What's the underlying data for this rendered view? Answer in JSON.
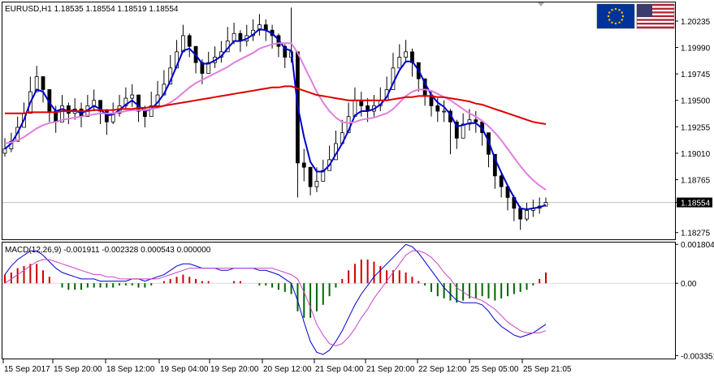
{
  "chart_data": [
    {
      "type": "candlestick",
      "title": "EURUSD,H1 1.18535 1.18554 1.18519 1.18554",
      "symbol": "EURUSD",
      "timeframe": "H1",
      "ohlc_last": {
        "open": 1.18535,
        "high": 1.18554,
        "low": 1.18519,
        "close": 1.18554
      },
      "current_price_label": "1.18554",
      "ylim": [
        1.1822,
        1.204
      ],
      "y_ticks": [
        "1.20235",
        "1.19990",
        "1.19745",
        "1.19500",
        "1.19255",
        "1.19010",
        "1.18765",
        "1.18554",
        "1.18275"
      ],
      "x_ticks": [
        "15 Sep 2017",
        "15 Sep 20:00",
        "18 Sep 12:00",
        "19 Sep 04:00",
        "19 Sep 20:00",
        "20 Sep 12:00",
        "21 Sep 04:00",
        "21 Sep 20:00",
        "22 Sep 12:00",
        "25 Sep 05:00",
        "25 Sep 21:05"
      ],
      "series": [
        {
          "color": "#000000",
          "close": [
            1.1905,
            1.1912,
            1.1925,
            1.1938,
            1.1958,
            1.1972,
            1.196,
            1.194,
            1.193,
            1.1945,
            1.1938,
            1.1942,
            1.1935,
            1.1945,
            1.195,
            1.194,
            1.193,
            1.1938,
            1.1945,
            1.1952,
            1.1955,
            1.194,
            1.1935,
            1.1945,
            1.1955,
            1.1965,
            1.198,
            1.1995,
            1.201,
            1.2,
            1.1985,
            1.1975,
            1.1985,
            1.199,
            1.1995,
            1.2005,
            1.2012,
            1.2005,
            1.201,
            1.2015,
            1.202,
            1.2015,
            1.201,
            1.2,
            1.199,
            1.1995,
            1.1892,
            1.1888,
            1.187,
            1.1875,
            1.1885,
            1.1895,
            1.191,
            1.192,
            1.1935,
            1.195,
            1.1945,
            1.194,
            1.1945,
            1.195,
            1.196,
            1.198,
            1.199,
            1.1995,
            1.1985,
            1.197,
            1.1955,
            1.1945,
            1.194,
            1.194,
            1.193,
            1.1915,
            1.1928,
            1.1932,
            1.193,
            1.192,
            1.19,
            1.188,
            1.187,
            1.186,
            1.185,
            1.184,
            1.1848,
            1.185,
            1.1852,
            1.18554
          ],
          "high": [
            1.1915,
            1.192,
            1.1935,
            1.1948,
            1.1972,
            1.1982,
            1.197,
            1.1952,
            1.1945,
            1.1955,
            1.1948,
            1.1952,
            1.1948,
            1.1955,
            1.196,
            1.195,
            1.1942,
            1.1948,
            1.1955,
            1.1962,
            1.1965,
            1.1952,
            1.1945,
            1.1958,
            1.1968,
            1.1978,
            1.1992,
            1.2006,
            1.202,
            1.2012,
            1.1998,
            1.1988,
            1.1995,
            1.2,
            1.2005,
            1.2018,
            1.2022,
            1.2015,
            1.202,
            1.2025,
            1.203,
            1.2025,
            1.202,
            1.2012,
            1.2002,
            1.2036,
            1.1995,
            1.1905,
            1.1888,
            1.1888,
            1.1895,
            1.1908,
            1.1922,
            1.1932,
            1.1948,
            1.1962,
            1.1958,
            1.1952,
            1.1955,
            1.1962,
            1.1972,
            1.1994,
            1.2002,
            1.2006,
            1.1998,
            1.1984,
            1.1968,
            1.1958,
            1.1952,
            1.195,
            1.1942,
            1.1932,
            1.1938,
            1.1942,
            1.194,
            1.1932,
            1.1915,
            1.1892,
            1.1882,
            1.1872,
            1.1862,
            1.1852,
            1.1855,
            1.1858,
            1.186,
            1.186
          ],
          "low": [
            1.1898,
            1.1902,
            1.1915,
            1.1928,
            1.1946,
            1.1958,
            1.1948,
            1.193,
            1.192,
            1.1934,
            1.1928,
            1.1932,
            1.1925,
            1.1935,
            1.194,
            1.1928,
            1.1918,
            1.1928,
            1.1935,
            1.1942,
            1.1944,
            1.193,
            1.1925,
            1.1935,
            1.1946,
            1.1955,
            1.197,
            1.1985,
            1.1998,
            1.199,
            1.1975,
            1.1965,
            1.1975,
            1.198,
            1.1985,
            1.1995,
            1.2002,
            1.1995,
            1.2,
            1.2005,
            1.201,
            1.2005,
            1.1998,
            1.199,
            1.198,
            1.1985,
            1.186,
            1.1875,
            1.1862,
            1.1865,
            1.1875,
            1.1885,
            1.1898,
            1.191,
            1.1925,
            1.1938,
            1.1935,
            1.193,
            1.1935,
            1.194,
            1.195,
            1.1968,
            1.198,
            1.1985,
            1.1972,
            1.1958,
            1.1945,
            1.1935,
            1.193,
            1.193,
            1.19,
            1.1905,
            1.1918,
            1.1922,
            1.192,
            1.1908,
            1.1888,
            1.1868,
            1.186,
            1.1848,
            1.1838,
            1.183,
            1.1838,
            1.1842,
            1.1845,
            1.1852
          ]
        },
        {
          "color": "#0000cc",
          "values": [
            1.1905,
            1.191,
            1.192,
            1.1932,
            1.1948,
            1.196,
            1.1958,
            1.1948,
            1.194,
            1.1942,
            1.194,
            1.1941,
            1.1938,
            1.1941,
            1.1945,
            1.1942,
            1.1936,
            1.1937,
            1.1941,
            1.1946,
            1.195,
            1.1945,
            1.194,
            1.1942,
            1.1948,
            1.1956,
            1.1968,
            1.1982,
            1.1996,
            1.1998,
            1.1992,
            1.1984,
            1.1984,
            1.1987,
            1.1991,
            1.1998,
            1.2005,
            1.2005,
            1.2007,
            1.2011,
            1.2016,
            1.2015,
            1.2012,
            1.2006,
            1.1998,
            1.1996,
            1.1945,
            1.1916,
            1.1893,
            1.1884,
            1.1884,
            1.189,
            1.19,
            1.191,
            1.1922,
            1.1936,
            1.194,
            1.194,
            1.1942,
            1.1946,
            1.1953,
            1.1966,
            1.1978,
            1.1986,
            1.1986,
            1.1978,
            1.1966,
            1.1955,
            1.1948,
            1.1944,
            1.1937,
            1.1926,
            1.1927,
            1.1929,
            1.1929,
            1.1924,
            1.1912,
            1.1896,
            1.1883,
            1.1871,
            1.186,
            1.185,
            1.1849,
            1.185,
            1.1851,
            1.1853
          ]
        },
        {
          "color": "#e07ee0",
          "values": [
            1.191,
            1.1911,
            1.1913,
            1.1916,
            1.192,
            1.1924,
            1.1927,
            1.1929,
            1.193,
            1.1932,
            1.1933,
            1.1934,
            1.1935,
            1.1936,
            1.1937,
            1.1938,
            1.1938,
            1.1938,
            1.1939,
            1.194,
            1.1941,
            1.1941,
            1.1941,
            1.1942,
            1.1943,
            1.1945,
            1.1948,
            1.1952,
            1.1957,
            1.1962,
            1.1966,
            1.1969,
            1.1972,
            1.1975,
            1.1978,
            1.1981,
            1.1985,
            1.1988,
            1.1991,
            1.1994,
            1.1998,
            1.2,
            1.2002,
            1.2003,
            1.2003,
            1.2003,
            1.1994,
            1.1982,
            1.197,
            1.1958,
            1.1948,
            1.194,
            1.1934,
            1.193,
            1.1929,
            1.193,
            1.1932,
            1.1933,
            1.1934,
            1.1936,
            1.1938,
            1.1942,
            1.1948,
            1.1954,
            1.1958,
            1.196,
            1.196,
            1.1959,
            1.1956,
            1.1953,
            1.195,
            1.1946,
            1.1942,
            1.1938,
            1.1935,
            1.1931,
            1.1926,
            1.192,
            1.1913,
            1.1905,
            1.1897,
            1.1889,
            1.1882,
            1.1876,
            1.1871,
            1.1867
          ]
        },
        {
          "color": "#dd0000",
          "values": [
            1.1938,
            1.1938,
            1.1938,
            1.1938,
            1.1939,
            1.1939,
            1.1939,
            1.1939,
            1.1939,
            1.194,
            1.194,
            1.194,
            1.194,
            1.194,
            1.1941,
            1.1941,
            1.1941,
            1.1941,
            1.1942,
            1.1942,
            1.1942,
            1.1943,
            1.1943,
            1.1944,
            1.1944,
            1.1945,
            1.1946,
            1.1947,
            1.1948,
            1.1949,
            1.195,
            1.1951,
            1.1952,
            1.1953,
            1.1954,
            1.1955,
            1.1956,
            1.1957,
            1.1958,
            1.1959,
            1.196,
            1.1961,
            1.1962,
            1.1962,
            1.1963,
            1.1963,
            1.1961,
            1.1959,
            1.1957,
            1.1955,
            1.1954,
            1.1953,
            1.1952,
            1.1951,
            1.195,
            1.195,
            1.195,
            1.195,
            1.195,
            1.195,
            1.195,
            1.1951,
            1.1952,
            1.1953,
            1.1953,
            1.1954,
            1.1954,
            1.1954,
            1.1953,
            1.1953,
            1.1952,
            1.1951,
            1.195,
            1.1949,
            1.1947,
            1.1946,
            1.1944,
            1.1942,
            1.194,
            1.1938,
            1.1936,
            1.1934,
            1.1932,
            1.193,
            1.1929,
            1.1928
          ]
        }
      ]
    },
    {
      "type": "macd",
      "title": "MACD(12,26,9) -0.001911 -0.002328 0.000543 0.000000",
      "ylim": [
        -0.00345,
        0.00185
      ],
      "y_ticks": [
        "0.001804",
        "0.00",
        "-0.003351"
      ],
      "zero_color_up": "#cc0000",
      "zero_color_down": "#006600",
      "histogram": [
        0.0004,
        0.0005,
        0.0007,
        0.0008,
        0.0009,
        0.0009,
        0.0006,
        0.0003,
        0.0,
        -0.0002,
        -0.0003,
        -0.0003,
        -0.0003,
        -0.0002,
        -0.0002,
        -0.0002,
        -0.0002,
        -0.0002,
        -0.0001,
        -0.0001,
        -0.0001,
        -0.0002,
        -0.0002,
        -0.0001,
        0.0,
        0.0001,
        0.0002,
        0.0003,
        0.0004,
        0.0003,
        0.0002,
        0.0001,
        0.0001,
        0.0,
        0.0,
        0.0,
        0.0001,
        0.0001,
        0.0,
        0.0,
        -0.0001,
        -0.0001,
        -0.0002,
        -0.0003,
        -0.0004,
        -0.0005,
        -0.0013,
        -0.0016,
        -0.0016,
        -0.0013,
        -0.001,
        -0.0006,
        -0.0002,
        0.0002,
        0.0006,
        0.0009,
        0.0011,
        0.0011,
        0.001,
        0.0008,
        0.0006,
        0.0006,
        0.0006,
        0.0005,
        0.0003,
        0.0001,
        -0.0001,
        -0.0004,
        -0.0006,
        -0.0007,
        -0.0008,
        -0.0009,
        -0.0008,
        -0.0007,
        -0.0007,
        -0.0006,
        -0.0007,
        -0.0008,
        -0.0007,
        -0.0006,
        -0.0005,
        -0.0004,
        -0.0003,
        -0.0001,
        0.0002,
        0.0005
      ],
      "series": [
        {
          "color": "#0000cc",
          "values": [
            0.0004,
            0.0008,
            0.0011,
            0.0013,
            0.0015,
            0.0015,
            0.0013,
            0.001,
            0.0007,
            0.0005,
            0.0004,
            0.0003,
            0.0002,
            0.0002,
            0.0002,
            0.0001,
            0.0001,
            0.0001,
            0.0001,
            0.0001,
            0.0002,
            0.0002,
            0.0001,
            0.0002,
            0.0003,
            0.0004,
            0.0006,
            0.0008,
            0.0009,
            0.0009,
            0.0008,
            0.0007,
            0.0007,
            0.0007,
            0.0006,
            0.0006,
            0.0007,
            0.0007,
            0.0007,
            0.0007,
            0.0006,
            0.0006,
            0.0005,
            0.0004,
            0.0002,
            0.0,
            -0.0008,
            -0.0018,
            -0.0027,
            -0.0032,
            -0.0033,
            -0.0031,
            -0.0027,
            -0.0022,
            -0.0016,
            -0.001,
            -0.0005,
            -0.0001,
            0.0003,
            0.0006,
            0.0009,
            0.0012,
            0.0015,
            0.0018,
            0.0017,
            0.0014,
            0.001,
            0.0006,
            0.0002,
            -0.0002,
            -0.0005,
            -0.0008,
            -0.0009,
            -0.0009,
            -0.0009,
            -0.001,
            -0.0013,
            -0.0017,
            -0.002,
            -0.0022,
            -0.0024,
            -0.0025,
            -0.0024,
            -0.0023,
            -0.0021,
            -0.0019
          ]
        },
        {
          "color": "#cc44cc",
          "values": [
            0.0,
            0.0002,
            0.0004,
            0.0006,
            0.0008,
            0.001,
            0.0011,
            0.0011,
            0.001,
            0.0009,
            0.0008,
            0.0007,
            0.0006,
            0.0005,
            0.0004,
            0.0004,
            0.0003,
            0.0003,
            0.0002,
            0.0002,
            0.0002,
            0.0002,
            0.0002,
            0.0002,
            0.0002,
            0.0003,
            0.0004,
            0.0005,
            0.0006,
            0.0007,
            0.0007,
            0.0007,
            0.0007,
            0.0007,
            0.0007,
            0.0007,
            0.0007,
            0.0007,
            0.0007,
            0.0007,
            0.0007,
            0.0007,
            0.0007,
            0.0006,
            0.0005,
            0.0004,
            0.0002,
            -0.0004,
            -0.0011,
            -0.0019,
            -0.0024,
            -0.0028,
            -0.0029,
            -0.0028,
            -0.0025,
            -0.0021,
            -0.0016,
            -0.0012,
            -0.0007,
            -0.0003,
            0.0001,
            0.0005,
            0.0009,
            0.0013,
            0.0015,
            0.0015,
            0.0014,
            0.0012,
            0.0009,
            0.0005,
            0.0002,
            -0.0002,
            -0.0004,
            -0.0006,
            -0.0007,
            -0.0008,
            -0.001,
            -0.0012,
            -0.0015,
            -0.0018,
            -0.002,
            -0.0022,
            -0.0023,
            -0.0023,
            -0.0023,
            -0.0022
          ]
        }
      ]
    }
  ],
  "flags": {
    "left": "eu-flag-icon",
    "right": "us-flag-icon"
  }
}
